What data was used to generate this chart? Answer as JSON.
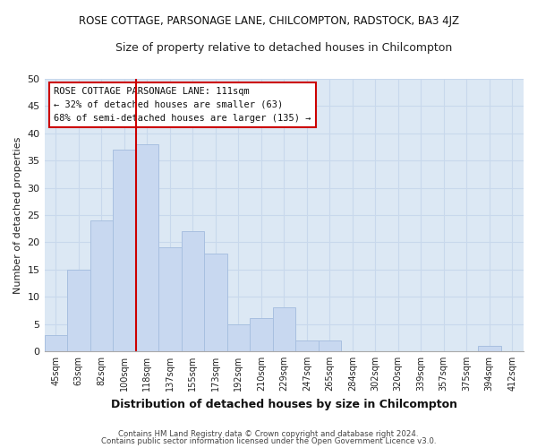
{
  "title": "ROSE COTTAGE, PARSONAGE LANE, CHILCOMPTON, RADSTOCK, BA3 4JZ",
  "subtitle": "Size of property relative to detached houses in Chilcompton",
  "xlabel": "Distribution of detached houses by size in Chilcompton",
  "ylabel": "Number of detached properties",
  "bar_labels": [
    "45sqm",
    "63sqm",
    "82sqm",
    "100sqm",
    "118sqm",
    "137sqm",
    "155sqm",
    "173sqm",
    "192sqm",
    "210sqm",
    "229sqm",
    "247sqm",
    "265sqm",
    "284sqm",
    "302sqm",
    "320sqm",
    "339sqm",
    "357sqm",
    "375sqm",
    "394sqm",
    "412sqm"
  ],
  "bar_values": [
    3,
    15,
    24,
    37,
    38,
    19,
    22,
    18,
    5,
    6,
    8,
    2,
    2,
    0,
    0,
    0,
    0,
    0,
    0,
    1,
    0
  ],
  "bar_color": "#c8d8f0",
  "bar_edge_color": "#a8c0e0",
  "property_line_color": "#cc0000",
  "property_line_index": 3.5,
  "ylim": [
    0,
    50
  ],
  "yticks": [
    0,
    5,
    10,
    15,
    20,
    25,
    30,
    35,
    40,
    45,
    50
  ],
  "annotation_title": "ROSE COTTAGE PARSONAGE LANE: 111sqm",
  "annotation_line1": "← 32% of detached houses are smaller (63)",
  "annotation_line2": "68% of semi-detached houses are larger (135) →",
  "annotation_box_color": "#ffffff",
  "annotation_box_edge": "#cc0000",
  "footer1": "Contains HM Land Registry data © Crown copyright and database right 2024.",
  "footer2": "Contains public sector information licensed under the Open Government Licence v3.0.",
  "grid_color": "#c8d8ec",
  "plot_bg_color": "#dce8f4",
  "fig_bg_color": "#ffffff"
}
